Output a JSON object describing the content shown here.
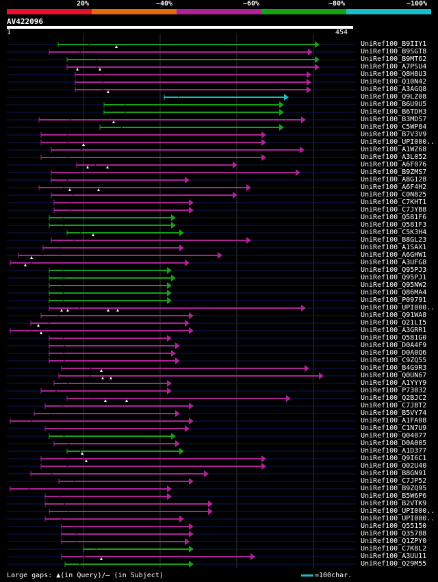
{
  "identity_legend": {
    "labels": [
      "20%",
      "~40%",
      "~60%",
      "~80%",
      "~100%"
    ],
    "colors": [
      "#e8112d",
      "#e86a10",
      "#b0229a",
      "#15a315",
      "#17c0c8"
    ]
  },
  "query": {
    "name": "AV422096",
    "start": "1",
    "length": "454"
  },
  "footer": {
    "large_gaps": "Large gaps: ▲(in Query)/– (in Subject)",
    "scale_text": "=100char."
  },
  "hits": [
    {
      "name": "UniRef100_B9IIY1",
      "from": 85,
      "to": 460,
      "gaps": [
        170
      ],
      "color": "#15a315",
      "tail_to": 460
    },
    {
      "name": "UniRef100_B9SGT8",
      "from": 72,
      "to": 450,
      "gaps": [],
      "color": "#b0229a"
    },
    {
      "name": "UniRef100_B9MT62",
      "from": 98,
      "to": 460,
      "gaps": [],
      "color": "#15a315",
      "tail_to": 460
    },
    {
      "name": "UniRef100_A7PSU4",
      "from": 98,
      "to": 460,
      "gaps": [
        113,
        146
      ],
      "color": "#b0229a",
      "tail_to": 460
    },
    {
      "name": "UniRef100_Q8H8U3",
      "from": 110,
      "to": 448,
      "gaps": [],
      "color": "#b0229a"
    },
    {
      "name": "UniRef100_Q10N42",
      "from": 110,
      "to": 448,
      "gaps": [],
      "color": "#b0229a"
    },
    {
      "name": "UniRef100_A3AGQ8",
      "from": 110,
      "to": 448,
      "gaps": [
        158
      ],
      "color": "#b0229a"
    },
    {
      "name": "UniRef100_Q9LZ08",
      "from": 240,
      "to": 415,
      "gaps": [],
      "color": "#17c0c8"
    },
    {
      "name": "UniRef100_B6U9U5",
      "from": 152,
      "to": 408,
      "gaps": [],
      "color": "#15a315"
    },
    {
      "name": "UniRef100_B6TDH3",
      "from": 152,
      "to": 408,
      "gaps": [],
      "color": "#15a315"
    },
    {
      "name": "UniRef100_B3MDS7",
      "from": 57,
      "to": 440,
      "gaps": [
        166
      ],
      "color": "#b0229a"
    },
    {
      "name": "UniRef100_C5WP84",
      "from": 146,
      "to": 408,
      "gaps": [],
      "color": "#15a315"
    },
    {
      "name": "UniRef100_B7V3V9",
      "from": 60,
      "to": 382,
      "gaps": [],
      "color": "#b0229a"
    },
    {
      "name": "UniRef100_UPI000..",
      "from": 60,
      "to": 382,
      "gaps": [
        122
      ],
      "color": "#b0229a"
    },
    {
      "name": "UniRef100_A1WZ68",
      "from": 75,
      "to": 438,
      "gaps": [],
      "color": "#b0229a"
    },
    {
      "name": "UniRef100_A3L052",
      "from": 60,
      "to": 382,
      "gaps": [],
      "color": "#b0229a"
    },
    {
      "name": "UniRef100_A6F076",
      "from": 112,
      "to": 340,
      "gaps": [
        128,
        157
      ],
      "color": "#b0229a"
    },
    {
      "name": "UniRef100_B9ZMS7",
      "from": 75,
      "to": 432,
      "gaps": [],
      "color": "#b0229a"
    },
    {
      "name": "UniRef100_A8G128",
      "from": 75,
      "to": 270,
      "gaps": [],
      "color": "#b0229a"
    },
    {
      "name": "UniRef100_A6F4H2",
      "from": 57,
      "to": 360,
      "gaps": [
        102,
        144
      ],
      "color": "#b0229a"
    },
    {
      "name": "UniRef100_C0N825",
      "from": 75,
      "to": 340,
      "gaps": [],
      "color": "#b0229a"
    },
    {
      "name": "UniRef100_C7KHT1",
      "from": 79,
      "to": 276,
      "gaps": [],
      "color": "#b0229a"
    },
    {
      "name": "UniRef100_C7JYB8",
      "from": 79,
      "to": 276,
      "gaps": [],
      "color": "#b0229a"
    },
    {
      "name": "UniRef100_Q581F6",
      "from": 72,
      "to": 250,
      "gaps": [],
      "color": "#15a315"
    },
    {
      "name": "UniRef100_Q581F3",
      "from": 72,
      "to": 250,
      "gaps": [],
      "color": "#15a315"
    },
    {
      "name": "UniRef100_C5K3H4",
      "from": 98,
      "to": 262,
      "gaps": [
        136
      ],
      "color": "#15a315"
    },
    {
      "name": "UniRef100_B8GL23",
      "from": 75,
      "to": 360,
      "gaps": [],
      "color": "#b0229a"
    },
    {
      "name": "UniRef100_A1SAX1",
      "from": 63,
      "to": 262,
      "gaps": [],
      "color": "#b0229a"
    },
    {
      "name": "UniRef100_A6GHW1",
      "from": 27,
      "to": 318,
      "gaps": [
        46
      ],
      "color": "#b0229a"
    },
    {
      "name": "UniRef100_A3UFG8",
      "from": 15,
      "to": 270,
      "gaps": [
        37
      ],
      "color": "#b0229a"
    },
    {
      "name": "UniRef100_Q95PJ3",
      "from": 72,
      "to": 244,
      "gaps": [],
      "color": "#15a315"
    },
    {
      "name": "UniRef100_Q95PJ1",
      "from": 72,
      "to": 250,
      "gaps": [],
      "color": "#15a315"
    },
    {
      "name": "UniRef100_Q95NW2",
      "from": 72,
      "to": 244,
      "gaps": [],
      "color": "#15a315"
    },
    {
      "name": "UniRef100_Q86MA4",
      "from": 72,
      "to": 244,
      "gaps": [],
      "color": "#15a315"
    },
    {
      "name": "UniRef100_P09791",
      "from": 72,
      "to": 244,
      "gaps": [],
      "color": "#15a315"
    },
    {
      "name": "UniRef100_UPI000..",
      "from": 72,
      "to": 440,
      "gaps": [
        90,
        99,
        158,
        172
      ],
      "color": "#b0229a"
    },
    {
      "name": "UniRef100_Q91WA8",
      "from": 60,
      "to": 276,
      "gaps": [],
      "color": "#b0229a"
    },
    {
      "name": "UniRef100_Q21LI5",
      "from": 45,
      "to": 270,
      "gaps": [
        56
      ],
      "color": "#b0229a"
    },
    {
      "name": "UniRef100_A3GRR1",
      "from": 15,
      "to": 276,
      "gaps": [
        60
      ],
      "color": "#b0229a"
    },
    {
      "name": "UniRef100_Q581G0",
      "from": 72,
      "to": 244,
      "gaps": [],
      "color": "#b0229a"
    },
    {
      "name": "UniRef100_D0A4F9",
      "from": 72,
      "to": 256,
      "gaps": [],
      "color": "#b0229a"
    },
    {
      "name": "UniRef100_D0A0Q6",
      "from": 72,
      "to": 250,
      "gaps": [],
      "color": "#b0229a"
    },
    {
      "name": "UniRef100_C9ZQ55",
      "from": 72,
      "to": 256,
      "gaps": [],
      "color": "#b0229a"
    },
    {
      "name": "UniRef100_B4G9R3",
      "from": 90,
      "to": 445,
      "gaps": [
        148
      ],
      "color": "#b0229a"
    },
    {
      "name": "UniRef100_Q0UN67",
      "from": 86,
      "to": 466,
      "gaps": [
        150,
        162
      ],
      "color": "#b0229a"
    },
    {
      "name": "UniRef100_A1YYY9",
      "from": 79,
      "to": 244,
      "gaps": [],
      "color": "#b0229a"
    },
    {
      "name": "UniRef100_P73032",
      "from": 60,
      "to": 244,
      "gaps": [],
      "color": "#b0229a"
    },
    {
      "name": "UniRef100_Q2BJC2",
      "from": 98,
      "to": 418,
      "gaps": [
        154,
        185
      ],
      "color": "#b0229a"
    },
    {
      "name": "UniRef100_C7JBT2",
      "from": 66,
      "to": 276,
      "gaps": [],
      "color": "#b0229a"
    },
    {
      "name": "UniRef100_B5VY74",
      "from": 50,
      "to": 256,
      "gaps": [],
      "color": "#b0229a"
    },
    {
      "name": "UniRef100_A1FA08",
      "from": 15,
      "to": 276,
      "gaps": [],
      "color": "#b0229a"
    },
    {
      "name": "UniRef100_C1N7U9",
      "from": 66,
      "to": 270,
      "gaps": [],
      "color": "#b0229a"
    },
    {
      "name": "UniRef100_Q04077",
      "from": 72,
      "to": 250,
      "gaps": [],
      "color": "#15a315"
    },
    {
      "name": "UniRef100_D0A005",
      "from": 79,
      "to": 256,
      "gaps": [],
      "color": "#b0229a"
    },
    {
      "name": "UniRef100_A1D377",
      "from": 98,
      "to": 262,
      "gaps": [
        120
      ],
      "color": "#15a315"
    },
    {
      "name": "UniRef100_Q9I6C1",
      "from": 60,
      "to": 382,
      "gaps": [
        126
      ],
      "color": "#b0229a"
    },
    {
      "name": "UniRef100_Q02U40",
      "from": 60,
      "to": 382,
      "gaps": [],
      "color": "#b0229a"
    },
    {
      "name": "UniRef100_B8GN91",
      "from": 45,
      "to": 298,
      "gaps": [],
      "color": "#b0229a"
    },
    {
      "name": "UniRef100_C7JP52",
      "from": 86,
      "to": 276,
      "gaps": [],
      "color": "#b0229a"
    },
    {
      "name": "UniRef100_B9ZQ95",
      "from": 15,
      "to": 244,
      "gaps": [],
      "color": "#b0229a"
    },
    {
      "name": "UniRef100_B5W6P6",
      "from": 66,
      "to": 244,
      "gaps": [],
      "color": "#b0229a"
    },
    {
      "name": "UniRef100_B2VTK9",
      "from": 66,
      "to": 304,
      "gaps": [],
      "color": "#b0229a"
    },
    {
      "name": "UniRef100_UPI000..",
      "from": 72,
      "to": 304,
      "gaps": [],
      "color": "#b0229a"
    },
    {
      "name": "UniRef100_UPI000..",
      "from": 66,
      "to": 262,
      "gaps": [],
      "color": "#b0229a"
    },
    {
      "name": "UniRef100_Q55150",
      "from": 90,
      "to": 276,
      "gaps": [],
      "color": "#b0229a"
    },
    {
      "name": "UniRef100_Q35788",
      "from": 90,
      "to": 276,
      "gaps": [],
      "color": "#b0229a"
    },
    {
      "name": "UniRef100_Q1ZPY0",
      "from": 90,
      "to": 270,
      "gaps": [],
      "color": "#b0229a"
    },
    {
      "name": "UniRef100_C7K8L2",
      "from": 122,
      "to": 276,
      "gaps": [],
      "color": "#15a315"
    },
    {
      "name": "UniRef100_A3UU11",
      "from": 90,
      "to": 366,
      "gaps": [
        148
      ],
      "color": "#b0229a"
    },
    {
      "name": "UniRef100_Q29M55",
      "from": 95,
      "to": 276,
      "gaps": [],
      "color": "#15a315"
    }
  ]
}
